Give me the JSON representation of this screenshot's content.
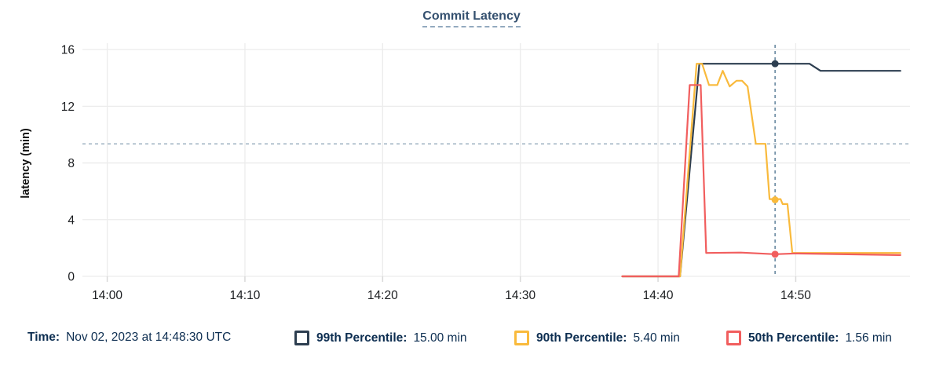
{
  "title": "Commit Latency",
  "y_axis_label": "latency (min)",
  "footer": {
    "time_label": "Time:",
    "time_value": "Nov 02, 2023 at 14:48:30 UTC",
    "items": [
      {
        "label": "99th Percentile:",
        "value": "15.00 min"
      },
      {
        "label": "90th Percentile:",
        "value": "5.40 min"
      },
      {
        "label": "50th Percentile:",
        "value": "1.56 min"
      }
    ]
  },
  "colors": {
    "p99": "#2d3e50",
    "p90": "#f9ba3c",
    "p50": "#f15e5e",
    "gridline": "#ececec",
    "tick": "#d9d9d9",
    "threshold": "#9db1c0",
    "cursor": "#60819b",
    "axis_text": "#1a1c1f",
    "navy_text": "#0d2e51"
  },
  "chart_data": {
    "type": "line",
    "title": "Commit Latency",
    "xlabel": "",
    "ylabel": "latency (min)",
    "grid": true,
    "legend_position": "bottom",
    "x_unit": "minutes after 14:00 UTC",
    "x_range": [
      -1.8,
      58.3
    ],
    "y_range": [
      0,
      16.45
    ],
    "x_ticks": [
      {
        "t": 0,
        "label": "14:00"
      },
      {
        "t": 10,
        "label": "14:10"
      },
      {
        "t": 20,
        "label": "14:20"
      },
      {
        "t": 30,
        "label": "14:30"
      },
      {
        "t": 40,
        "label": "14:40"
      },
      {
        "t": 50,
        "label": "14:50"
      }
    ],
    "y_ticks": [
      0,
      4,
      8,
      12,
      16
    ],
    "threshold_y": 9.35,
    "cursor": {
      "t": 48.5,
      "time": "14:48:30 UTC",
      "date": "Nov 02, 2023"
    },
    "series": [
      {
        "name": "99th Percentile",
        "color": "#2d3e50",
        "cursor_value": 15.0,
        "points": [
          [
            37.4,
            0
          ],
          [
            41.6,
            0
          ],
          [
            43.0,
            15
          ],
          [
            51.0,
            15
          ],
          [
            51.8,
            14.5
          ],
          [
            57.6,
            14.5
          ]
        ]
      },
      {
        "name": "90th Percentile",
        "color": "#f9ba3c",
        "cursor_value": 5.4,
        "points": [
          [
            37.4,
            0
          ],
          [
            41.6,
            0
          ],
          [
            42.8,
            15
          ],
          [
            43.2,
            15
          ],
          [
            43.7,
            13.5
          ],
          [
            44.3,
            13.5
          ],
          [
            44.7,
            14.5
          ],
          [
            45.2,
            13.4
          ],
          [
            45.7,
            13.8
          ],
          [
            46.1,
            13.8
          ],
          [
            46.5,
            13.4
          ],
          [
            47.1,
            9.35
          ],
          [
            47.8,
            9.35
          ],
          [
            48.1,
            5.45
          ],
          [
            48.9,
            5.45
          ],
          [
            49.05,
            5.1
          ],
          [
            49.4,
            5.1
          ],
          [
            49.75,
            1.65
          ],
          [
            57.6,
            1.65
          ]
        ]
      },
      {
        "name": "50th Percentile",
        "color": "#f15e5e",
        "cursor_value": 1.56,
        "points": [
          [
            37.4,
            0
          ],
          [
            41.5,
            0
          ],
          [
            42.3,
            13.5
          ],
          [
            43.1,
            13.5
          ],
          [
            43.5,
            1.65
          ],
          [
            46.0,
            1.68
          ],
          [
            48.5,
            1.56
          ],
          [
            50.0,
            1.62
          ],
          [
            57.6,
            1.5
          ]
        ]
      }
    ]
  }
}
